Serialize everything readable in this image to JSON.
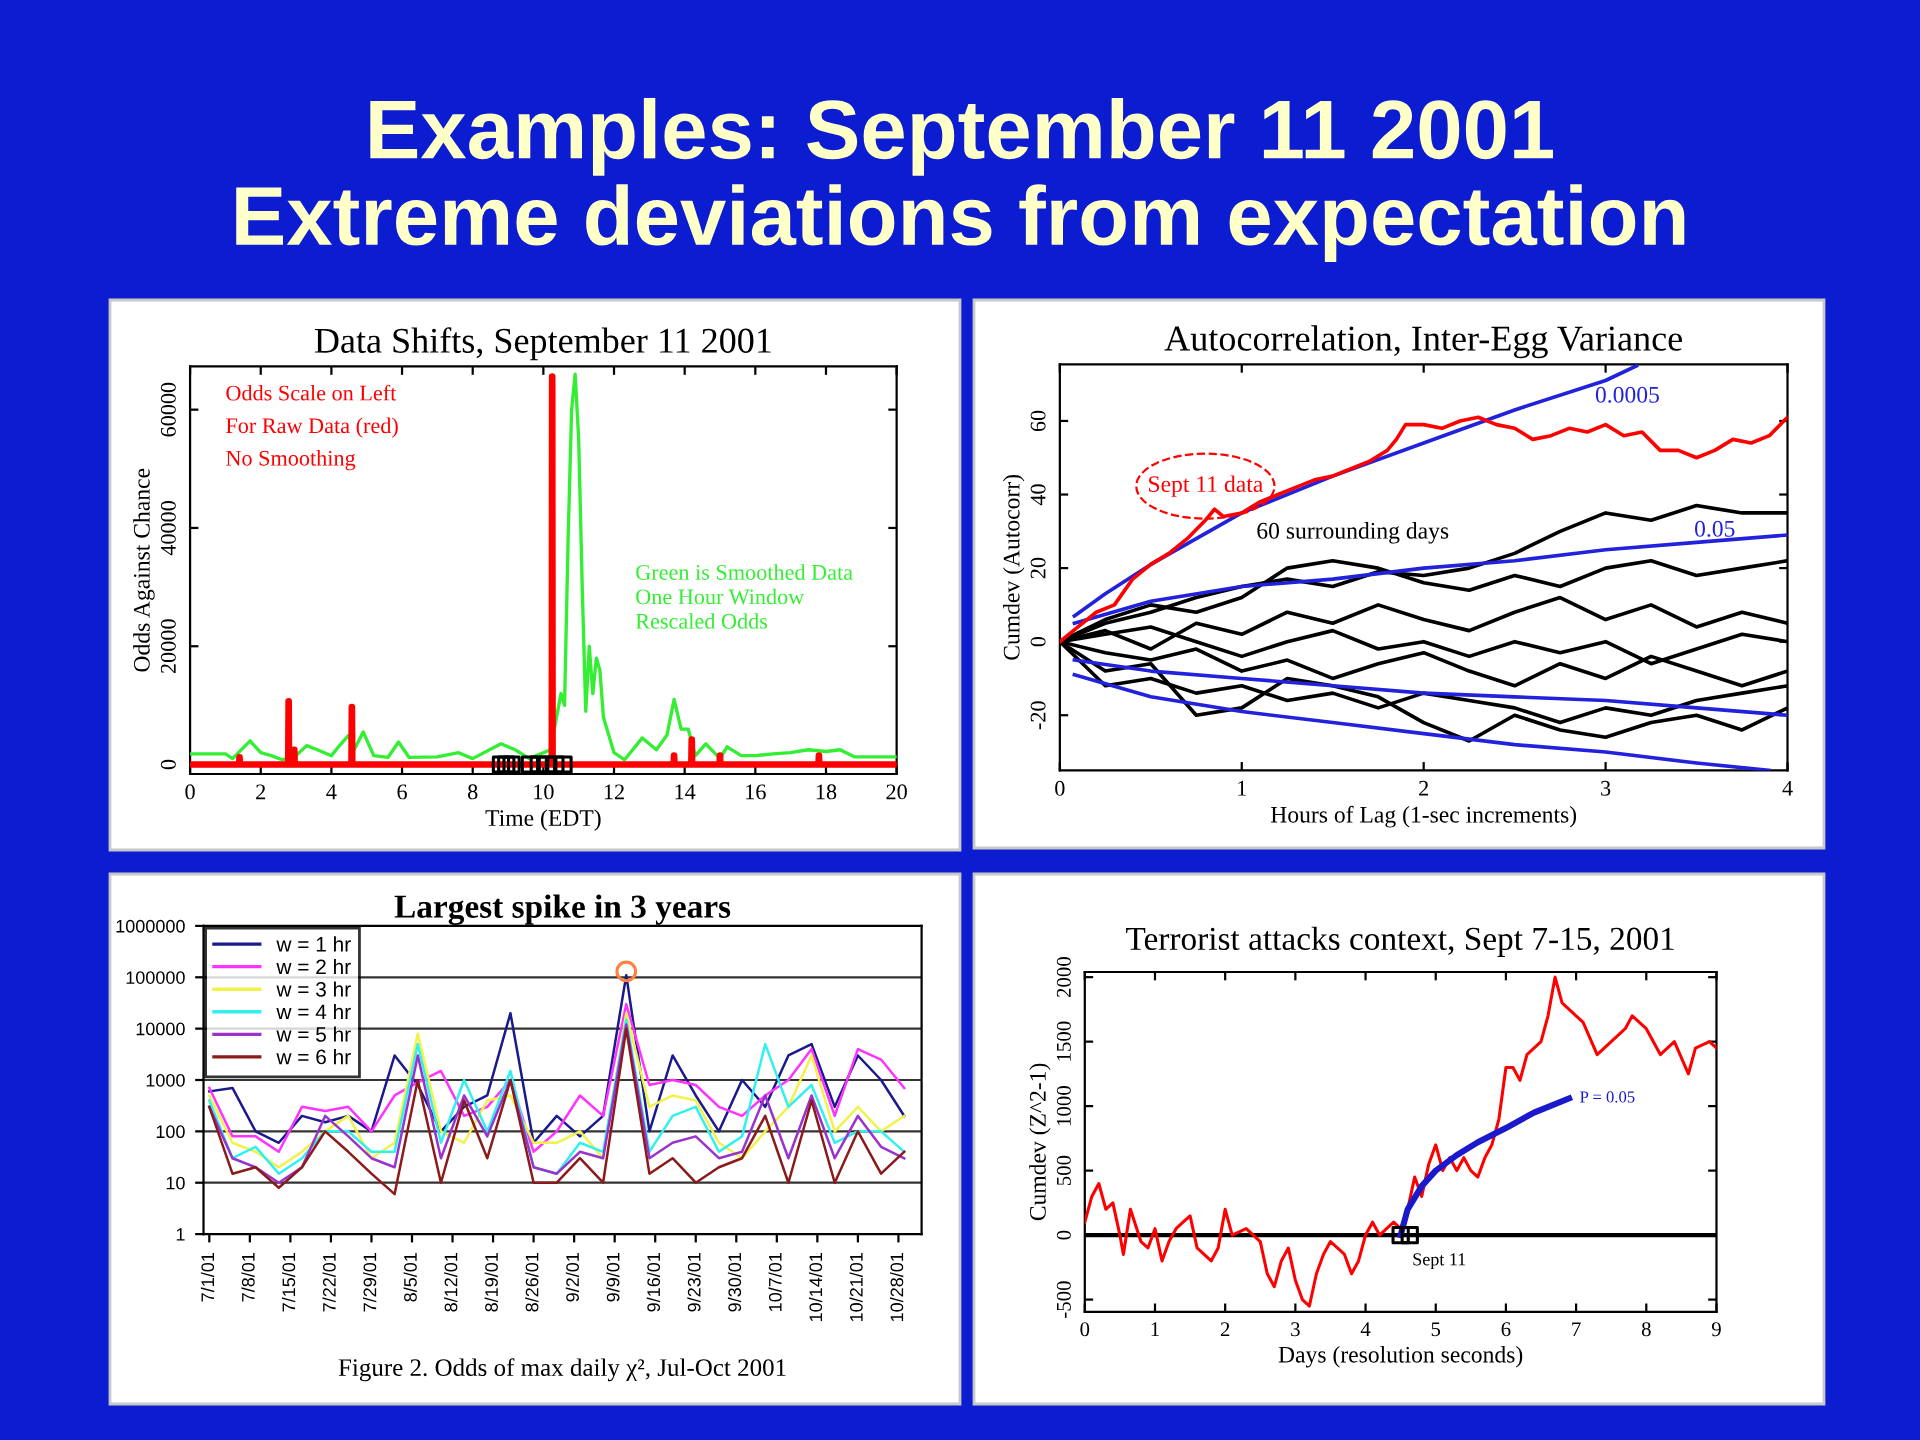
{
  "chart_data": [
    {
      "type": "other",
      "title": "Examples: September 11 2001",
      "subtitle": "Extreme deviations from expectation"
    },
    {
      "type": "line",
      "title": "Data Shifts, September 11 2001",
      "xlabel": "Time (EDT)",
      "ylabel": "Odds Against Chance",
      "xlim": [
        0,
        20
      ],
      "xticks": [
        0,
        2,
        4,
        6,
        8,
        10,
        12,
        14,
        16,
        18,
        20
      ],
      "ylim": [
        -1600,
        67300
      ],
      "yticks": [
        0,
        20000,
        40000,
        60000
      ],
      "series": [
        {
          "color": "#33ee33",
          "x": [
            0,
            1.0,
            1.2,
            1.7,
            2.0,
            2.3,
            2.6,
            3.0,
            3.3,
            3.6,
            4.0,
            4.2,
            4.5,
            4.6,
            4.9,
            5.2,
            5.6,
            5.9,
            6.2,
            7.0,
            7.6,
            8.0,
            8.8,
            9.2,
            9.6,
            10.2,
            10.5,
            10.6,
            10.7,
            10.8,
            10.9,
            11.0,
            11.1,
            11.2,
            11.3,
            11.4,
            11.5,
            11.6,
            11.7,
            12.0,
            12.3,
            12.8,
            13.2,
            13.5,
            13.7,
            13.9,
            14.1,
            14.3,
            14.6,
            15.0,
            15.2,
            15.6,
            16.0,
            16.5,
            17.0,
            17.5,
            18.0,
            18.4,
            18.8,
            20
          ],
          "values": [
            1800,
            1800,
            1000,
            4000,
            2000,
            1500,
            800,
            1500,
            3200,
            2500,
            1500,
            3000,
            5000,
            2000,
            5500,
            1500,
            1200,
            3800,
            1200,
            1300,
            2000,
            1000,
            3500,
            2500,
            1000,
            2500,
            12000,
            10000,
            38000,
            60000,
            66000,
            55000,
            30000,
            9000,
            20000,
            12000,
            18000,
            16000,
            8000,
            2000,
            800,
            4500,
            2500,
            5000,
            11000,
            6000,
            6000,
            1500,
            3500,
            1000,
            3000,
            1500,
            1500,
            1800,
            2000,
            2500,
            2200,
            2500,
            1300,
            1300
          ]
        },
        {
          "color": "#ff0000",
          "x": [
            0,
            1.39,
            1.4,
            1.41,
            2.78,
            2.79,
            2.8,
            2.94,
            2.95,
            2.96,
            4.57,
            4.58,
            4.59,
            10.24,
            10.25,
            10.26,
            13.69,
            13.7,
            13.71,
            14.19,
            14.2,
            14.21,
            14.99,
            15.0,
            15.01,
            17.79,
            17.8,
            17.81,
            20
          ],
          "values": [
            0,
            0,
            1200,
            0,
            0,
            10700,
            0,
            0,
            2500,
            0,
            0,
            9700,
            0,
            0,
            65600,
            0,
            0,
            1500,
            0,
            0,
            4200,
            0,
            0,
            1500,
            0,
            0,
            1500,
            0,
            0
          ]
        },
        {
          "type": "scatter",
          "marker": "square",
          "color": "#000000",
          "x": [
            8.8,
            8.95,
            9.1,
            9.62,
            9.87,
            10.1,
            10.34,
            10.57
          ],
          "values": [
            0,
            0,
            0,
            0,
            0,
            0,
            0,
            0
          ]
        }
      ],
      "annotations": [
        "Odds Scale on Left",
        "For Raw Data (red)",
        "No Smoothing",
        "Green is Smoothed Data",
        "One Hour Window",
        "Rescaled Odds"
      ]
    },
    {
      "type": "line",
      "title": "Autocorrelation, Inter-Egg Variance",
      "xlabel": "Hours of Lag (1-sec increments)",
      "ylabel": "Cumdev (Autocorr)",
      "xlim": [
        0,
        4
      ],
      "xticks": [
        0,
        1,
        2,
        3,
        4
      ],
      "ylim": [
        -35,
        75.4
      ],
      "yticks": [
        -20,
        0,
        20,
        40,
        60
      ],
      "series": [
        {
          "color": "#000000",
          "x": [
            0,
            0.25,
            0.5,
            0.75,
            1,
            1.25,
            1.5,
            1.75,
            2,
            2.25,
            2.5,
            2.75,
            3,
            3.25,
            3.5,
            3.75,
            4
          ],
          "values": [
            0,
            5,
            8,
            12,
            15,
            17,
            15,
            19,
            18,
            20,
            24,
            30,
            35,
            33,
            37,
            35,
            35
          ]
        },
        {
          "color": "#000000",
          "x": [
            0,
            0.25,
            0.5,
            0.75,
            1,
            1.25,
            1.5,
            1.75,
            2,
            2.25,
            2.5,
            2.75,
            3,
            3.25,
            3.5,
            3.75,
            4
          ],
          "values": [
            0,
            -8,
            -6,
            -20,
            -18,
            -10,
            -12,
            -15,
            -22,
            -27,
            -20,
            -24,
            -26,
            -22,
            -20,
            -24,
            -18
          ]
        },
        {
          "color": "#000000",
          "x": [
            0,
            0.25,
            0.5,
            0.75,
            1,
            1.25,
            1.5,
            1.75,
            2,
            2.25,
            2.5,
            2.75,
            3,
            3.25,
            3.5,
            3.75,
            4
          ],
          "values": [
            0,
            3,
            -2,
            5,
            2,
            8,
            5,
            10,
            6,
            3,
            8,
            12,
            6,
            10,
            4,
            8,
            5
          ]
        },
        {
          "color": "#000000",
          "x": [
            0,
            0.25,
            0.5,
            0.75,
            1,
            1.25,
            1.5,
            1.75,
            2,
            2.25,
            2.5,
            2.75,
            3,
            3.25,
            3.5,
            3.75,
            4
          ],
          "values": [
            0,
            -3,
            -5,
            -2,
            -8,
            -5,
            -10,
            -6,
            -3,
            -8,
            -12,
            -6,
            -10,
            -4,
            -8,
            -12,
            -8
          ]
        },
        {
          "color": "#000000",
          "x": [
            0,
            0.25,
            0.5,
            0.75,
            1,
            1.25,
            1.5,
            1.75,
            2,
            2.25,
            2.5,
            2.75,
            3,
            3.25,
            3.5,
            3.75,
            4
          ],
          "values": [
            0,
            6,
            10,
            8,
            12,
            20,
            22,
            20,
            16,
            14,
            18,
            15,
            20,
            22,
            18,
            20,
            22
          ]
        },
        {
          "color": "#000000",
          "x": [
            0,
            0.25,
            0.5,
            0.75,
            1,
            1.25,
            1.5,
            1.75,
            2,
            2.25,
            2.5,
            2.75,
            3,
            3.25,
            3.5,
            3.75,
            4
          ],
          "values": [
            0,
            -12,
            -10,
            -14,
            -12,
            -16,
            -14,
            -18,
            -14,
            -16,
            -18,
            -22,
            -18,
            -20,
            -16,
            -14,
            -12
          ]
        },
        {
          "color": "#000000",
          "x": [
            0,
            0.25,
            0.5,
            0.75,
            1,
            1.25,
            1.5,
            1.75,
            2,
            2.25,
            2.5,
            2.75,
            3,
            3.25,
            3.5,
            3.75,
            4
          ],
          "values": [
            0,
            2,
            4,
            0,
            -4,
            0,
            3,
            -2,
            0,
            -4,
            0,
            -3,
            0,
            -6,
            -2,
            2,
            0
          ]
        },
        {
          "color": "#2222dd",
          "x": [
            0.08,
            0.25,
            0.5,
            0.75,
            1,
            1.5,
            2,
            2.5,
            3,
            3.17
          ],
          "values": [
            7,
            13,
            21,
            28,
            35,
            45,
            54,
            63,
            71,
            75
          ]
        },
        {
          "color": "#2222dd",
          "x": [
            0.08,
            0.5,
            1,
            1.5,
            2,
            2.5,
            3,
            3.5,
            4
          ],
          "values": [
            5,
            11,
            15,
            17,
            20,
            22,
            25,
            27,
            29
          ]
        },
        {
          "color": "#2222dd",
          "x": [
            0.08,
            0.5,
            1,
            1.5,
            2,
            2.5,
            3,
            3.5,
            4
          ],
          "values": [
            -5,
            -8,
            -10,
            -12,
            -14,
            -15,
            -16,
            -18,
            -20
          ]
        },
        {
          "color": "#2222dd",
          "x": [
            0.08,
            0.5,
            1,
            1.5,
            2,
            2.5,
            3,
            3.5,
            3.9
          ],
          "values": [
            -9,
            -15,
            -19,
            -22,
            -25,
            -28,
            -30,
            -33,
            -35
          ]
        },
        {
          "color": "#ff0000",
          "x": [
            0,
            0.1,
            0.2,
            0.3,
            0.4,
            0.5,
            0.6,
            0.7,
            0.8,
            0.85,
            0.9,
            1.0,
            1.1,
            1.2,
            1.3,
            1.4,
            1.5,
            1.6,
            1.7,
            1.8,
            1.85,
            1.9,
            2.0,
            2.1,
            2.2,
            2.3,
            2.4,
            2.5,
            2.6,
            2.7,
            2.8,
            2.9,
            3.0,
            3.1,
            3.2,
            3.3,
            3.4,
            3.5,
            3.6,
            3.7,
            3.8,
            3.9,
            4.0
          ],
          "values": [
            0,
            4,
            8,
            10,
            17,
            21,
            24,
            28,
            33,
            36,
            34,
            35,
            38,
            40,
            42,
            44,
            45,
            47,
            49,
            52,
            55,
            59,
            59,
            58,
            60,
            61,
            59,
            58,
            55,
            56,
            58,
            57,
            59,
            56,
            57,
            52,
            52,
            50,
            52,
            55,
            54,
            56,
            61
          ]
        }
      ],
      "annotations": [
        "Sept 11 data",
        "60 surrounding days",
        "0.0005",
        "0.05"
      ]
    },
    {
      "type": "line",
      "title": "Largest spike in 3 years",
      "log": true,
      "grid": "y",
      "legend": "top left",
      "x": [
        "2001-07-01",
        "2001-07-05",
        "2001-07-09",
        "2001-07-13",
        "2001-07-17",
        "2001-07-21",
        "2001-07-25",
        "2001-07-29",
        "2001-08-02",
        "2001-08-06",
        "2001-08-10",
        "2001-08-14",
        "2001-08-18",
        "2001-08-22",
        "2001-08-26",
        "2001-08-30",
        "2001-09-03",
        "2001-09-07",
        "2001-09-11",
        "2001-09-15",
        "2001-09-19",
        "2001-09-23",
        "2001-09-27",
        "2001-10-01",
        "2001-10-05",
        "2001-10-09",
        "2001-10-13",
        "2001-10-17",
        "2001-10-21",
        "2001-10-25",
        "2001-10-29"
      ],
      "xlim": [
        "2001-06-30",
        "2001-11-01"
      ],
      "xticks": [
        {
          "value": "2001-07-01",
          "label": "7/1/01"
        },
        {
          "value": "2001-07-08",
          "label": "7/8/01"
        },
        {
          "value": "2001-07-15",
          "label": "7/15/01"
        },
        {
          "value": "2001-07-22",
          "label": "7/22/01"
        },
        {
          "value": "2001-07-29",
          "label": "7/29/01"
        },
        {
          "value": "2001-08-05",
          "label": "8/5/01"
        },
        {
          "value": "2001-08-12",
          "label": "8/12/01"
        },
        {
          "value": "2001-08-19",
          "label": "8/19/01"
        },
        {
          "value": "2001-08-26",
          "label": "8/26/01"
        },
        {
          "value": "2001-09-02",
          "label": "9/2/01"
        },
        {
          "value": "2001-09-09",
          "label": "9/9/01"
        },
        {
          "value": "2001-09-16",
          "label": "9/16/01"
        },
        {
          "value": "2001-09-23",
          "label": "9/23/01"
        },
        {
          "value": "2001-09-30",
          "label": "9/30/01"
        },
        {
          "value": "2001-10-07",
          "label": "10/7/01"
        },
        {
          "value": "2001-10-14",
          "label": "10/14/01"
        },
        {
          "value": "2001-10-21",
          "label": "10/21/01"
        },
        {
          "value": "2001-10-28",
          "label": "10/28/01"
        }
      ],
      "ylim": [
        1,
        1000000
      ],
      "yticks": [
        1,
        10,
        100,
        1000,
        10000,
        100000,
        1000000
      ],
      "series": [
        {
          "name": "w = 1 hr",
          "color": "#1a1a8c",
          "values": [
            600,
            700,
            100,
            60,
            200,
            150,
            200,
            100,
            3000,
            800,
            100,
            300,
            500,
            20000,
            60,
            200,
            80,
            200,
            110000,
            100,
            3000,
            500,
            100,
            1000,
            300,
            3000,
            5000,
            300,
            3000,
            1000,
            200
          ]
        },
        {
          "name": "w = 2 hr",
          "color": "#ff33ff",
          "values": [
            700,
            80,
            80,
            40,
            300,
            250,
            300,
            100,
            500,
            900,
            1500,
            200,
            300,
            1000,
            40,
            100,
            500,
            200,
            30000,
            800,
            1000,
            800,
            300,
            200,
            500,
            1000,
            4000,
            200,
            4000,
            2500,
            700
          ]
        },
        {
          "name": "w = 3 hr",
          "color": "#f2f24a",
          "values": [
            500,
            60,
            40,
            20,
            40,
            100,
            200,
            30,
            60,
            8000,
            100,
            60,
            400,
            500,
            60,
            60,
            100,
            30,
            20000,
            300,
            500,
            400,
            60,
            30,
            100,
            300,
            3000,
            100,
            300,
            100,
            200
          ]
        },
        {
          "name": "w = 4 hr",
          "color": "#33f0f0",
          "values": [
            400,
            30,
            50,
            15,
            30,
            100,
            100,
            40,
            40,
            5000,
            60,
            1000,
            100,
            1500,
            20,
            15,
            60,
            40,
            15000,
            40,
            200,
            300,
            40,
            80,
            5000,
            300,
            800,
            60,
            100,
            100,
            40
          ]
        },
        {
          "name": "w = 5 hr",
          "color": "#9933cc",
          "values": [
            300,
            30,
            20,
            10,
            20,
            200,
            80,
            30,
            20,
            3000,
            30,
            500,
            80,
            1000,
            20,
            15,
            40,
            30,
            12000,
            30,
            60,
            80,
            30,
            40,
            500,
            30,
            500,
            30,
            200,
            50,
            30
          ]
        },
        {
          "name": "w = 6 hr",
          "color": "#8b1a1a",
          "values": [
            300,
            15,
            20,
            8,
            20,
            100,
            40,
            15,
            6,
            1000,
            10,
            400,
            30,
            1000,
            10,
            10,
            30,
            10,
            10000,
            15,
            30,
            10,
            20,
            30,
            200,
            10,
            400,
            10,
            100,
            15,
            40
          ]
        },
        {
          "type": "scatter",
          "marker": "circle",
          "color": "#ff8040",
          "x": [
            "2001-09-11"
          ],
          "values": [
            130000
          ]
        }
      ],
      "annotations": [
        "Figure 2. Odds of max daily χ², Jul-Oct 2001"
      ]
    },
    {
      "type": "line",
      "title": "Terrorist attacks context, Sept 7-15, 2001",
      "xlabel": "Days (resolution seconds)",
      "ylabel": "Cumdev (Z^2-1)",
      "xlim": [
        0,
        9
      ],
      "xticks": [
        0,
        1,
        2,
        3,
        4,
        5,
        6,
        7,
        8,
        9
      ],
      "ylim": [
        -595,
        2040
      ],
      "yticks": [
        -500,
        0,
        500,
        1000,
        1500,
        2000
      ],
      "ref_lines": [
        {
          "axis": "y",
          "value": 0,
          "color": "#000000"
        }
      ],
      "series": [
        {
          "color": "#ff0000",
          "x": [
            0,
            0.1,
            0.2,
            0.3,
            0.4,
            0.5,
            0.55,
            0.65,
            0.8,
            0.9,
            1.0,
            1.1,
            1.2,
            1.3,
            1.4,
            1.5,
            1.6,
            1.8,
            1.9,
            2.0,
            2.1,
            2.3,
            2.5,
            2.6,
            2.7,
            2.8,
            2.9,
            3.0,
            3.1,
            3.2,
            3.3,
            3.4,
            3.5,
            3.6,
            3.7,
            3.8,
            3.9,
            4.0,
            4.1,
            4.2,
            4.3,
            4.4,
            4.5,
            4.6,
            4.7,
            4.8,
            4.9,
            5.0,
            5.1,
            5.2,
            5.3,
            5.4,
            5.5,
            5.6,
            5.7,
            5.8,
            5.9,
            6.0,
            6.1,
            6.2,
            6.3,
            6.5,
            6.6,
            6.7,
            6.8,
            7.0,
            7.1,
            7.3,
            7.4,
            7.5,
            7.7,
            7.8,
            8.0,
            8.2,
            8.4,
            8.6,
            8.7,
            8.9,
            9.0
          ],
          "values": [
            100,
            300,
            400,
            200,
            250,
            0,
            -150,
            200,
            -50,
            -100,
            50,
            -200,
            -50,
            50,
            100,
            150,
            -100,
            -200,
            -100,
            200,
            0,
            50,
            -50,
            -300,
            -400,
            -200,
            -100,
            -350,
            -500,
            -550,
            -300,
            -150,
            -50,
            -100,
            -150,
            -300,
            -200,
            0,
            100,
            0,
            50,
            100,
            50,
            200,
            450,
            300,
            550,
            700,
            500,
            600,
            500,
            600,
            500,
            450,
            600,
            700,
            900,
            1300,
            1300,
            1200,
            1400,
            1500,
            1700,
            2000,
            1800,
            1700,
            1650,
            1400,
            1450,
            1500,
            1600,
            1700,
            1600,
            1400,
            1500,
            1250,
            1450,
            1500,
            1450
          ]
        },
        {
          "color": "#1a1acc",
          "x": [
            4.5,
            4.6,
            4.8,
            5.0,
            5.3,
            5.6,
            6.0,
            6.4,
            6.9
          ],
          "values": [
            0,
            200,
            380,
            500,
            620,
            720,
            830,
            950,
            1060
          ]
        },
        {
          "type": "scatter",
          "marker": "square",
          "color": "#000000",
          "x": [
            4.5,
            4.63
          ],
          "values": [
            0,
            0
          ]
        }
      ],
      "annotations": [
        {
          "text": "P = 0.05",
          "x": 6.9,
          "y": 1060
        },
        {
          "text": "Sept 11",
          "x": 4.5,
          "y": 0
        }
      ]
    }
  ]
}
